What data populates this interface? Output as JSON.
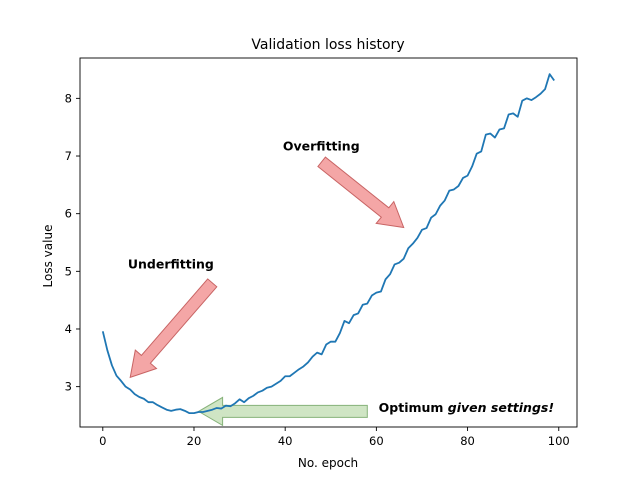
{
  "chart_data": {
    "type": "line",
    "title": "Validation loss history",
    "xlabel": "No. epoch",
    "ylabel": "Loss value",
    "xlim": [
      -5,
      104
    ],
    "ylim": [
      2.3,
      8.7
    ],
    "xticks": [
      0,
      20,
      40,
      60,
      80,
      100
    ],
    "yticks": [
      3,
      4,
      5,
      6,
      7,
      8
    ],
    "grid": false,
    "legend": "none",
    "line_color": "#1f77b4",
    "series": [
      {
        "x": [
          0,
          1,
          2,
          3,
          4,
          5,
          6,
          7,
          8,
          9,
          10,
          11,
          12,
          13,
          14,
          15,
          16,
          17,
          18,
          19,
          20,
          21,
          22,
          23,
          24,
          25,
          26,
          27,
          28,
          29,
          30,
          31,
          32,
          33,
          34,
          35,
          36,
          37,
          38,
          39,
          40,
          41,
          42,
          43,
          44,
          45,
          46,
          47,
          48,
          49,
          50,
          51,
          52,
          53,
          54,
          55,
          56,
          57,
          58,
          59,
          60,
          61,
          62,
          63,
          64,
          65,
          66,
          67,
          68,
          69,
          70,
          71,
          72,
          73,
          74,
          75,
          76,
          77,
          78,
          79,
          80,
          81,
          82,
          83,
          84,
          85,
          86,
          87,
          88,
          89,
          90,
          91,
          92,
          93,
          94,
          95,
          96,
          97,
          98,
          99
        ],
        "values": [
          3.96,
          3.63,
          3.37,
          3.19,
          3.1,
          3.0,
          2.95,
          2.87,
          2.82,
          2.79,
          2.73,
          2.73,
          2.68,
          2.64,
          2.6,
          2.58,
          2.6,
          2.61,
          2.58,
          2.54,
          2.54,
          2.56,
          2.56,
          2.58,
          2.6,
          2.63,
          2.62,
          2.67,
          2.66,
          2.71,
          2.78,
          2.73,
          2.8,
          2.84,
          2.9,
          2.93,
          2.98,
          3.0,
          3.05,
          3.1,
          3.18,
          3.18,
          3.24,
          3.3,
          3.35,
          3.42,
          3.52,
          3.59,
          3.56,
          3.73,
          3.78,
          3.78,
          3.93,
          4.14,
          4.1,
          4.24,
          4.27,
          4.42,
          4.44,
          4.58,
          4.63,
          4.65,
          4.86,
          4.95,
          5.12,
          5.15,
          5.22,
          5.4,
          5.48,
          5.58,
          5.72,
          5.75,
          5.93,
          5.99,
          6.14,
          6.23,
          6.4,
          6.42,
          6.48,
          6.62,
          6.66,
          6.82,
          7.04,
          7.08,
          7.37,
          7.39,
          7.32,
          7.46,
          7.48,
          7.72,
          7.74,
          7.68,
          7.96,
          8.0,
          7.97,
          8.02,
          8.08,
          8.16,
          8.42,
          8.31
        ]
      }
    ],
    "annotations": [
      {
        "text": "Underfitting",
        "text_at": [
          5.5,
          5.05
        ],
        "arrow_from": [
          24,
          4.8
        ],
        "arrow_to": [
          6,
          3.16
        ],
        "color": "#f4a6a6",
        "edge": "#c86464"
      },
      {
        "text": "Overfitting",
        "text_at": [
          39.5,
          7.1
        ],
        "arrow_from": [
          48,
          6.9
        ],
        "arrow_to": [
          66,
          5.76
        ],
        "color": "#f4a6a6",
        "edge": "#c86464"
      },
      {
        "text": "Optimum",
        "text_italic": "given settings!",
        "text_at": [
          60.5,
          2.56
        ],
        "arrow_from": [
          58,
          2.57
        ],
        "arrow_to": [
          21,
          2.57
        ],
        "color": "#cfe5c4",
        "edge": "#86b27a"
      }
    ]
  }
}
